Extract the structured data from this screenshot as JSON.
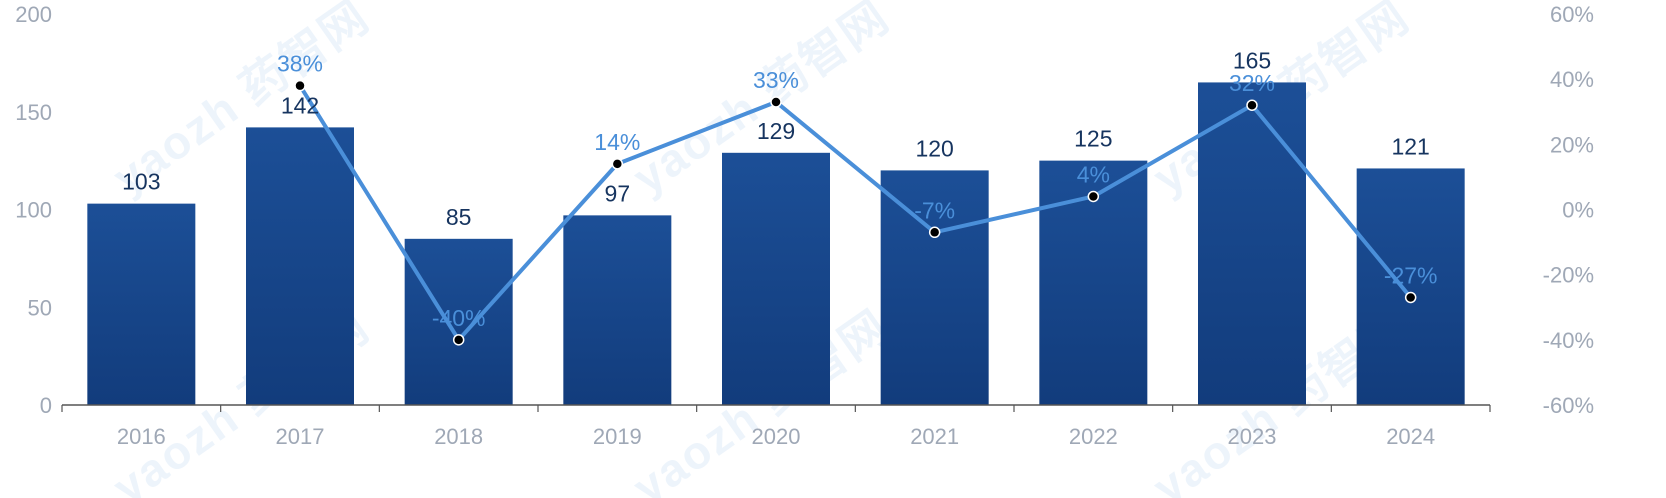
{
  "watermark": "yaozh 药智网",
  "colors": {
    "bar_top": "#1c4f97",
    "bar_bottom": "#123c7c",
    "line": "#4a8fd9",
    "marker": "#000000",
    "axis": "#555555"
  },
  "chart_data": {
    "type": "bar",
    "categories": [
      "2016",
      "2017",
      "2018",
      "2019",
      "2020",
      "2021",
      "2022",
      "2023",
      "2024"
    ],
    "series": [
      {
        "type": "bar",
        "axis": "left",
        "values": [
          103,
          142,
          85,
          97,
          129,
          120,
          125,
          165,
          121
        ],
        "labels": [
          "103",
          "142",
          "85",
          "97",
          "129",
          "120",
          "125",
          "165",
          "121"
        ]
      },
      {
        "type": "line",
        "axis": "right",
        "values": [
          null,
          38,
          -40,
          14,
          33,
          -7,
          4,
          32,
          -27
        ],
        "labels": [
          "",
          "38%",
          "-40%",
          "14%",
          "33%",
          "-7%",
          "4%",
          "32%",
          "-27%"
        ]
      }
    ],
    "y_left": {
      "range": [
        0,
        200
      ],
      "ticks": [
        0,
        50,
        100,
        150,
        200
      ],
      "tick_labels": [
        "0",
        "50",
        "100",
        "150",
        "200"
      ]
    },
    "y_right": {
      "range": [
        -60,
        60
      ],
      "ticks": [
        -60,
        -40,
        -20,
        0,
        20,
        40,
        60
      ],
      "tick_labels": [
        "-60%",
        "-40%",
        "-20%",
        "0%",
        "20%",
        "40%",
        "60%"
      ]
    },
    "grid": false,
    "legend": "none"
  }
}
